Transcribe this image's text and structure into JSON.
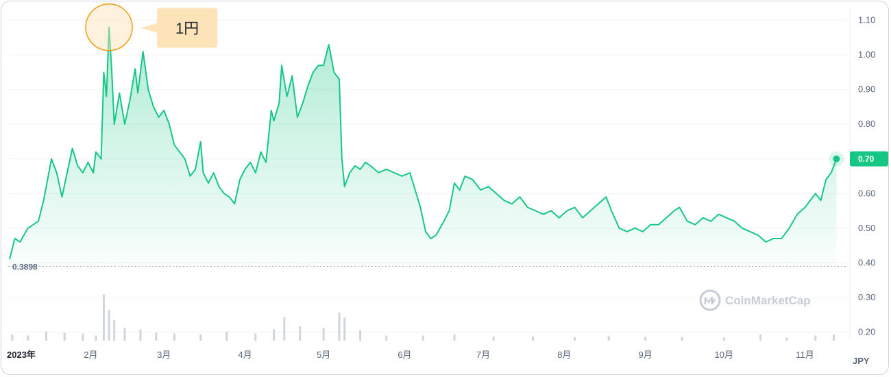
{
  "chart_data": {
    "type": "line",
    "y_ticks": [
      "1.10",
      "1.00",
      "0.90",
      "0.80",
      "0.70",
      "0.60",
      "0.50",
      "0.40",
      "0.30",
      "0.20"
    ],
    "y_tick_values": [
      1.1,
      1.0,
      0.9,
      0.8,
      0.7,
      0.6,
      0.5,
      0.4,
      0.3,
      0.2
    ],
    "ylim": [
      0.175,
      1.135
    ],
    "x_ticks": [
      "2023年",
      "2月",
      "3月",
      "4月",
      "5月",
      "6月",
      "7月",
      "8月",
      "9月",
      "10月",
      "11月"
    ],
    "x_tick_dates": [
      "2023-01-01",
      "2023-02-01",
      "2023-03-01",
      "2023-04-01",
      "2023-05-01",
      "2023-06-01",
      "2023-07-01",
      "2023-08-01",
      "2023-09-01",
      "2023-10-01",
      "2023-11-01"
    ],
    "xlim": [
      "2023-01-01",
      "2023-11-15"
    ],
    "unit_label": "JPY",
    "min_label": "0.3898",
    "min_value": 0.3898,
    "current_label": "0.70",
    "current_value": 0.7,
    "peak_date": "2023-02-08",
    "peak_value": 1.08,
    "series": [
      {
        "points": [
          [
            "2023-01-01",
            0.41
          ],
          [
            "2023-01-03",
            0.47
          ],
          [
            "2023-01-05",
            0.46
          ],
          [
            "2023-01-08",
            0.5
          ],
          [
            "2023-01-10",
            0.51
          ],
          [
            "2023-01-12",
            0.52
          ],
          [
            "2023-01-14",
            0.58
          ],
          [
            "2023-01-16",
            0.66
          ],
          [
            "2023-01-17",
            0.7
          ],
          [
            "2023-01-19",
            0.66
          ],
          [
            "2023-01-21",
            0.59
          ],
          [
            "2023-01-23",
            0.66
          ],
          [
            "2023-01-25",
            0.73
          ],
          [
            "2023-01-27",
            0.68
          ],
          [
            "2023-01-29",
            0.66
          ],
          [
            "2023-01-31",
            0.69
          ],
          [
            "2023-02-02",
            0.66
          ],
          [
            "2023-02-03",
            0.72
          ],
          [
            "2023-02-05",
            0.7
          ],
          [
            "2023-02-06",
            0.95
          ],
          [
            "2023-02-07",
            0.88
          ],
          [
            "2023-02-08",
            1.08
          ],
          [
            "2023-02-09",
            0.96
          ],
          [
            "2023-02-10",
            0.8
          ],
          [
            "2023-02-12",
            0.89
          ],
          [
            "2023-02-14",
            0.8
          ],
          [
            "2023-02-16",
            0.87
          ],
          [
            "2023-02-18",
            0.96
          ],
          [
            "2023-02-19",
            0.89
          ],
          [
            "2023-02-21",
            1.01
          ],
          [
            "2023-02-23",
            0.9
          ],
          [
            "2023-02-25",
            0.85
          ],
          [
            "2023-02-27",
            0.82
          ],
          [
            "2023-03-01",
            0.84
          ],
          [
            "2023-03-03",
            0.8
          ],
          [
            "2023-03-05",
            0.74
          ],
          [
            "2023-03-07",
            0.72
          ],
          [
            "2023-03-09",
            0.7
          ],
          [
            "2023-03-11",
            0.65
          ],
          [
            "2023-03-13",
            0.67
          ],
          [
            "2023-03-15",
            0.75
          ],
          [
            "2023-03-16",
            0.66
          ],
          [
            "2023-03-18",
            0.63
          ],
          [
            "2023-03-20",
            0.66
          ],
          [
            "2023-03-22",
            0.62
          ],
          [
            "2023-03-24",
            0.6
          ],
          [
            "2023-03-26",
            0.59
          ],
          [
            "2023-03-28",
            0.57
          ],
          [
            "2023-03-30",
            0.64
          ],
          [
            "2023-04-01",
            0.67
          ],
          [
            "2023-04-03",
            0.69
          ],
          [
            "2023-04-05",
            0.66
          ],
          [
            "2023-04-07",
            0.72
          ],
          [
            "2023-04-09",
            0.69
          ],
          [
            "2023-04-11",
            0.84
          ],
          [
            "2023-04-12",
            0.81
          ],
          [
            "2023-04-14",
            0.86
          ],
          [
            "2023-04-15",
            0.97
          ],
          [
            "2023-04-17",
            0.88
          ],
          [
            "2023-04-19",
            0.94
          ],
          [
            "2023-04-21",
            0.82
          ],
          [
            "2023-04-23",
            0.86
          ],
          [
            "2023-04-25",
            0.91
          ],
          [
            "2023-04-27",
            0.95
          ],
          [
            "2023-04-29",
            0.97
          ],
          [
            "2023-05-01",
            0.97
          ],
          [
            "2023-05-03",
            1.03
          ],
          [
            "2023-05-05",
            0.95
          ],
          [
            "2023-05-07",
            0.93
          ],
          [
            "2023-05-08",
            0.7
          ],
          [
            "2023-05-09",
            0.62
          ],
          [
            "2023-05-11",
            0.66
          ],
          [
            "2023-05-13",
            0.68
          ],
          [
            "2023-05-15",
            0.67
          ],
          [
            "2023-05-17",
            0.69
          ],
          [
            "2023-05-19",
            0.68
          ],
          [
            "2023-05-22",
            0.66
          ],
          [
            "2023-05-25",
            0.67
          ],
          [
            "2023-05-28",
            0.66
          ],
          [
            "2023-05-31",
            0.65
          ],
          [
            "2023-06-03",
            0.66
          ],
          [
            "2023-06-05",
            0.61
          ],
          [
            "2023-06-07",
            0.56
          ],
          [
            "2023-06-09",
            0.49
          ],
          [
            "2023-06-11",
            0.47
          ],
          [
            "2023-06-13",
            0.48
          ],
          [
            "2023-06-16",
            0.52
          ],
          [
            "2023-06-18",
            0.55
          ],
          [
            "2023-06-20",
            0.63
          ],
          [
            "2023-06-22",
            0.61
          ],
          [
            "2023-06-24",
            0.65
          ],
          [
            "2023-06-27",
            0.64
          ],
          [
            "2023-06-30",
            0.61
          ],
          [
            "2023-07-03",
            0.62
          ],
          [
            "2023-07-06",
            0.6
          ],
          [
            "2023-07-09",
            0.58
          ],
          [
            "2023-07-12",
            0.57
          ],
          [
            "2023-07-15",
            0.59
          ],
          [
            "2023-07-18",
            0.56
          ],
          [
            "2023-07-21",
            0.55
          ],
          [
            "2023-07-24",
            0.54
          ],
          [
            "2023-07-27",
            0.55
          ],
          [
            "2023-07-30",
            0.53
          ],
          [
            "2023-08-02",
            0.55
          ],
          [
            "2023-08-05",
            0.56
          ],
          [
            "2023-08-08",
            0.53
          ],
          [
            "2023-08-11",
            0.55
          ],
          [
            "2023-08-14",
            0.57
          ],
          [
            "2023-08-17",
            0.59
          ],
          [
            "2023-08-19",
            0.55
          ],
          [
            "2023-08-22",
            0.5
          ],
          [
            "2023-08-25",
            0.49
          ],
          [
            "2023-08-28",
            0.5
          ],
          [
            "2023-08-31",
            0.49
          ],
          [
            "2023-09-03",
            0.51
          ],
          [
            "2023-09-06",
            0.51
          ],
          [
            "2023-09-09",
            0.53
          ],
          [
            "2023-09-12",
            0.55
          ],
          [
            "2023-09-14",
            0.56
          ],
          [
            "2023-09-17",
            0.52
          ],
          [
            "2023-09-20",
            0.51
          ],
          [
            "2023-09-23",
            0.53
          ],
          [
            "2023-09-26",
            0.52
          ],
          [
            "2023-09-29",
            0.54
          ],
          [
            "2023-10-02",
            0.53
          ],
          [
            "2023-10-05",
            0.52
          ],
          [
            "2023-10-08",
            0.5
          ],
          [
            "2023-10-11",
            0.49
          ],
          [
            "2023-10-14",
            0.48
          ],
          [
            "2023-10-17",
            0.46
          ],
          [
            "2023-10-20",
            0.47
          ],
          [
            "2023-10-23",
            0.47
          ],
          [
            "2023-10-26",
            0.5
          ],
          [
            "2023-10-29",
            0.54
          ],
          [
            "2023-11-01",
            0.56
          ],
          [
            "2023-11-03",
            0.58
          ],
          [
            "2023-11-05",
            0.6
          ],
          [
            "2023-11-07",
            0.58
          ],
          [
            "2023-11-09",
            0.64
          ],
          [
            "2023-11-11",
            0.66
          ],
          [
            "2023-11-13",
            0.7
          ]
        ]
      }
    ],
    "volume": [
      [
        "2023-01-02",
        0.12
      ],
      [
        "2023-01-08",
        0.1
      ],
      [
        "2023-01-15",
        0.18
      ],
      [
        "2023-01-22",
        0.15
      ],
      [
        "2023-01-29",
        0.14
      ],
      [
        "2023-02-03",
        0.1
      ],
      [
        "2023-02-06",
        0.9
      ],
      [
        "2023-02-08",
        0.6
      ],
      [
        "2023-02-10",
        0.4
      ],
      [
        "2023-02-14",
        0.25
      ],
      [
        "2023-02-20",
        0.22
      ],
      [
        "2023-02-26",
        0.15
      ],
      [
        "2023-03-05",
        0.14
      ],
      [
        "2023-03-15",
        0.12
      ],
      [
        "2023-03-25",
        0.18
      ],
      [
        "2023-04-05",
        0.14
      ],
      [
        "2023-04-12",
        0.22
      ],
      [
        "2023-04-16",
        0.46
      ],
      [
        "2023-04-22",
        0.28
      ],
      [
        "2023-05-01",
        0.25
      ],
      [
        "2023-05-07",
        0.55
      ],
      [
        "2023-05-09",
        0.45
      ],
      [
        "2023-05-15",
        0.2
      ],
      [
        "2023-05-25",
        0.1
      ],
      [
        "2023-06-08",
        0.1
      ],
      [
        "2023-06-20",
        0.12
      ],
      [
        "2023-07-05",
        0.08
      ],
      [
        "2023-07-20",
        0.08
      ],
      [
        "2023-08-05",
        0.07
      ],
      [
        "2023-08-18",
        0.09
      ],
      [
        "2023-09-01",
        0.07
      ],
      [
        "2023-09-15",
        0.07
      ],
      [
        "2023-10-01",
        0.06
      ],
      [
        "2023-10-15",
        0.12
      ],
      [
        "2023-10-25",
        0.06
      ],
      [
        "2023-11-05",
        0.1
      ],
      [
        "2023-11-12",
        0.12
      ]
    ]
  },
  "callout": {
    "text": "1円"
  },
  "watermark": {
    "text": "CoinMarketCap"
  },
  "colors": {
    "line": "#16c784",
    "area_top": "#16c784",
    "grid": "#eff2f5",
    "axis_text": "#58667e",
    "volume": "#d0d5dd",
    "callout_bg": "#fde3b8",
    "callout_ring": "#f39c12",
    "min_line": "#9aa0ab",
    "watermark": "#c7ccd5"
  }
}
